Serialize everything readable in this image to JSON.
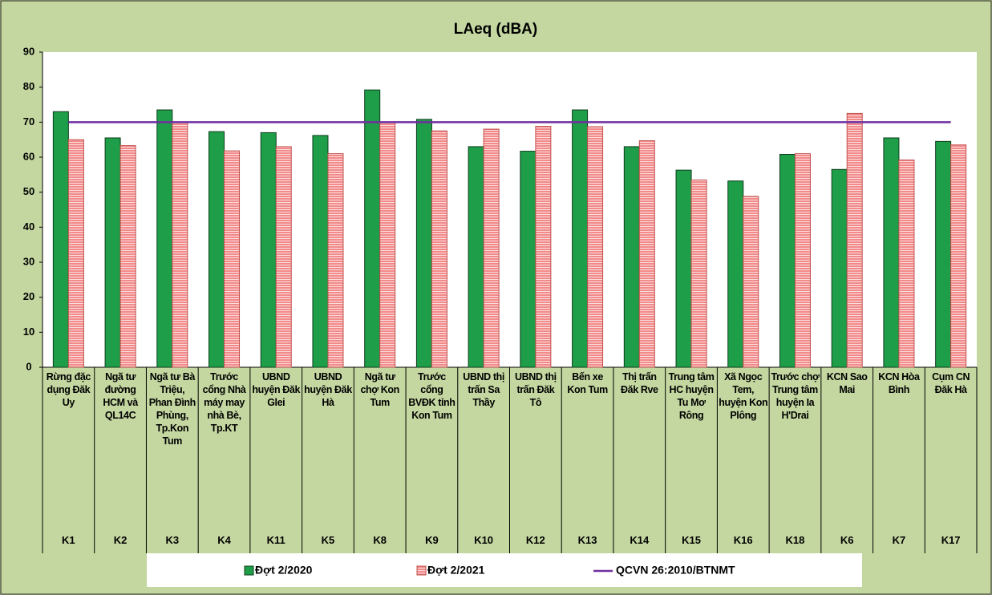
{
  "chart_data": {
    "type": "bar",
    "title": "LAeq (dBA)",
    "categories": [
      "Rừng đặc dụng Đăk Uy",
      "Ngã tư đường HCM và QL14C",
      "Ngã tư Bà Triệu, Phan Đình Phùng, Tp.Kon Tum",
      "Trước cổng Nhà máy may nhà Bè, Tp.KT",
      "UBND huyện Đăk Glei",
      "UBND huyện Đăk Hà",
      "Ngã tư chợ Kon Tum",
      "Trước cổng BVĐK tỉnh Kon Tum",
      "UBND thị trấn Sa Thầy",
      "UBND thị trấn Đăk Tô",
      "Bến xe Kon Tum",
      "Thị trấn Đăk Rve",
      "Trung tâm HC huyện Tu Mơ Rông",
      "Xã Ngọc Tem, huyện Kon Plông",
      "Trước chợ Trung tâm huyện Ia H'Drai",
      "KCN Sao Mai",
      "KCN Hòa Bình",
      "Cụm CN Đăk Hà"
    ],
    "codes": [
      "K1",
      "K2",
      "K3",
      "K4",
      "K11",
      "K5",
      "K8",
      "K9",
      "K10",
      "K12",
      "K13",
      "K14",
      "K15",
      "K16",
      "K18",
      "K6",
      "K7",
      "K17"
    ],
    "series": [
      {
        "name": "Đợt 2/2020",
        "type": "bar",
        "color": "#1e9e48",
        "values": [
          73,
          65.5,
          73.5,
          67.3,
          67,
          66.2,
          79.2,
          70.8,
          63,
          61.7,
          73.5,
          63,
          56.3,
          53.2,
          60.8,
          56.5,
          65.5,
          64.5
        ]
      },
      {
        "name": "Đợt 2/2021",
        "type": "bar",
        "color": "#f28a8a",
        "values": [
          65,
          63.3,
          70,
          61.8,
          63,
          61,
          70,
          67.5,
          68,
          68.8,
          68.7,
          64.7,
          53.5,
          48.8,
          61,
          72.5,
          59.2,
          63.5
        ]
      },
      {
        "name": "QCVN 26:2010/BTNMT",
        "type": "line",
        "color": "#7030a0",
        "values": [
          70,
          70,
          70,
          70,
          70,
          70,
          70,
          70,
          70,
          70,
          70,
          70,
          70,
          70,
          70,
          70,
          70,
          70
        ]
      }
    ],
    "ylim": [
      0,
      90
    ],
    "yticks": [
      0,
      10,
      20,
      30,
      40,
      50,
      60,
      70,
      80,
      90
    ],
    "grid": false,
    "legend": "bottom"
  }
}
